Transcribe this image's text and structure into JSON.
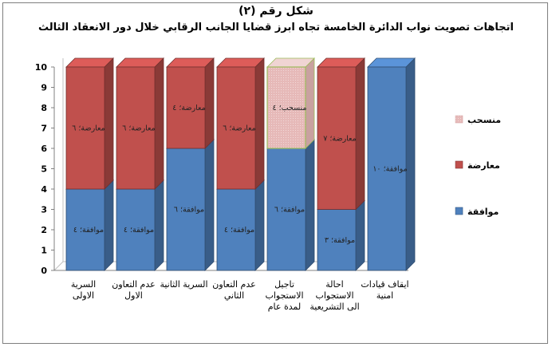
{
  "chart_data": {
    "type": "bar",
    "stacked": true,
    "three_d": true,
    "title": "شكل رقم (٢)",
    "subtitle": "اتجاهات تصويت نواب الدائرة الخامسة تجاه ابرز قضايا الجانب الرقابي خلال دور الانعقاد الثالث",
    "categories": [
      [
        "السرية",
        "الاولى"
      ],
      [
        "عدم التعاون",
        "الاول"
      ],
      [
        "السرية الثانية"
      ],
      [
        "عدم التعاون",
        "الثاني"
      ],
      [
        "تاجيل",
        "الاستجواب",
        "لمدة عام"
      ],
      [
        "احالة",
        "الاستجواب",
        "الى التشريعية"
      ],
      [
        "ايقاف قيادات",
        "امنية"
      ]
    ],
    "series": [
      {
        "name": "موافقة",
        "color": "#4f81bd",
        "values": [
          4,
          4,
          6,
          4,
          6,
          3,
          10
        ],
        "labels": [
          "موافقة؛ ٤",
          "موافقة؛ ٤",
          "موافقة؛ ٦",
          "موافقة؛ ٤",
          "موافقة؛ ٦",
          "موافقة؛ ٣",
          "موافقة؛ ١٠"
        ]
      },
      {
        "name": "معارضة",
        "color": "#c0504d",
        "values": [
          6,
          6,
          4,
          6,
          0,
          7,
          0
        ],
        "labels": [
          "معارضة؛ ٦",
          "معارضة؛ ٦",
          "معارضة؛ ٤",
          "معارضة؛ ٦",
          "",
          "معارضة؛ ٧",
          ""
        ]
      },
      {
        "name": "منسحب",
        "color": "#e6b9b8",
        "values": [
          0,
          0,
          0,
          0,
          4,
          0,
          0
        ],
        "labels": [
          "",
          "",
          "",
          "",
          "منسحب؛ ٤",
          "",
          ""
        ]
      }
    ],
    "ylim": [
      0,
      10
    ],
    "yticks": [
      "0",
      "1",
      "2",
      "3",
      "4",
      "5",
      "6",
      "7",
      "8",
      "9",
      "10"
    ],
    "grid": false,
    "legend": {
      "position": "right",
      "order": [
        "منسحب",
        "معارضة",
        "موافقة"
      ]
    }
  }
}
